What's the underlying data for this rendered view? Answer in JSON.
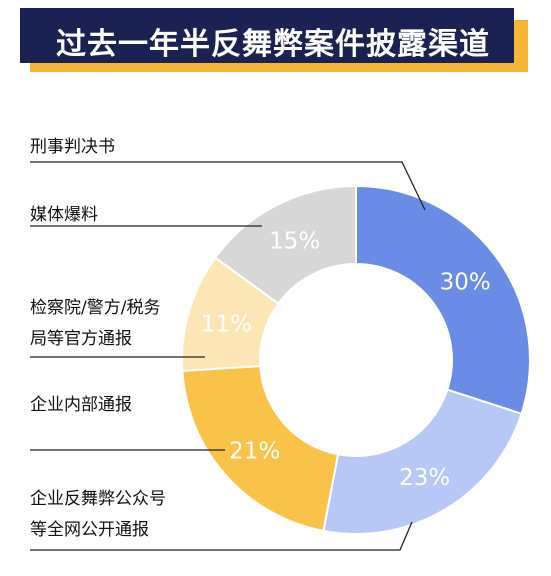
{
  "header": {
    "title": "过去一年半反舞弊案件披露渠道"
  },
  "colors": {
    "banner_bg": "#1c2153",
    "banner_accent": "#f5b731"
  },
  "chart_data": {
    "type": "donut",
    "title": "过去一年半反舞弊案件披露渠道",
    "series": [
      {
        "name": "刑事判决书",
        "value": 30,
        "label": "30%",
        "color": "#6a8be6"
      },
      {
        "name": "企业反舞弊公众号等全网公开通报",
        "value": 23,
        "label": "23%",
        "color": "#b7c8f6"
      },
      {
        "name": "企业内部通报",
        "value": 21,
        "label": "21%",
        "color": "#f9c248"
      },
      {
        "name": "检察院/警方/税务局等官方通报",
        "value": 11,
        "label": "11%",
        "color": "#fde6b5"
      },
      {
        "name": "媒体爆料",
        "value": 15,
        "label": "15%",
        "color": "#d7d7d7"
      }
    ]
  }
}
